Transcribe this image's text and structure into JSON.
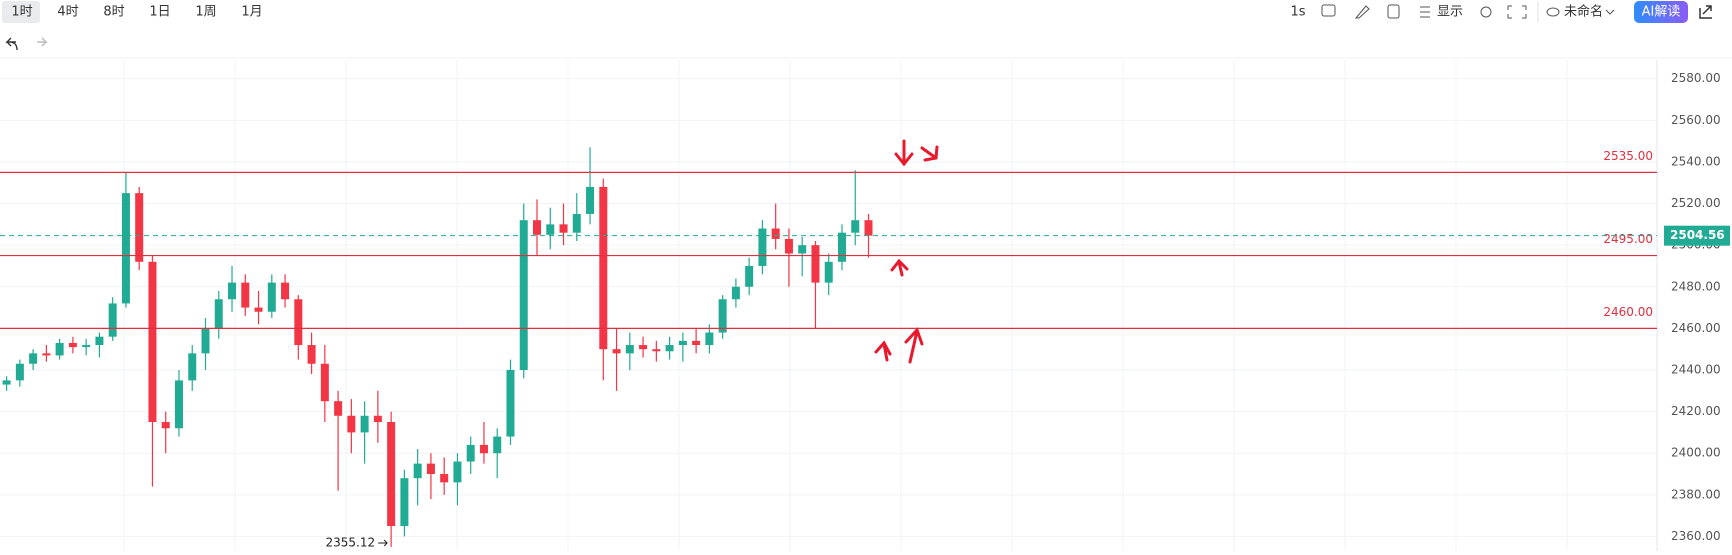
{
  "toolbar": {
    "intervals": [
      "1时",
      "4时",
      "8时",
      "1日",
      "1周",
      "1月"
    ],
    "refresh": "1s",
    "display": "显示",
    "layout_name": "未命名",
    "ai_button": "AI解读"
  },
  "chart_data": {
    "type": "candlestick",
    "up_color": "#22ab94",
    "down_color": "#f23645",
    "level_color": "#e03040",
    "grid": true,
    "ylim": [
      2353,
      2589
    ],
    "yticks": [
      {
        "value": 2360,
        "label": "2360.00"
      },
      {
        "value": 2380,
        "label": "2380.00"
      },
      {
        "value": 2400,
        "label": "2400.00"
      },
      {
        "value": 2420,
        "label": "2420.00"
      },
      {
        "value": 2440,
        "label": "2440.00"
      },
      {
        "value": 2460,
        "label": "2460.00"
      },
      {
        "value": 2480,
        "label": "2480.00"
      },
      {
        "value": 2500,
        "label": "2500.00"
      },
      {
        "value": 2520,
        "label": "2520.00"
      },
      {
        "value": 2540,
        "label": "2540.00"
      },
      {
        "value": 2560,
        "label": "2560.00"
      },
      {
        "value": 2580,
        "label": "2580.00"
      }
    ],
    "levels": [
      {
        "value": 2535,
        "label": "2535.00"
      },
      {
        "value": 2495,
        "label": "2495.00"
      },
      {
        "value": 2460,
        "label": "2460.00"
      }
    ],
    "last_price": {
      "value": 2504.56,
      "label": "2504.56"
    },
    "low_marker": {
      "value": 2355.12,
      "label": "2355.12"
    },
    "ohlc": [
      [
        2433,
        2437,
        2430,
        2435
      ],
      [
        2435,
        2445,
        2432,
        2443
      ],
      [
        2443,
        2450,
        2440,
        2448
      ],
      [
        2448,
        2452,
        2444,
        2447
      ],
      [
        2447,
        2455,
        2445,
        2453
      ],
      [
        2453,
        2456,
        2448,
        2451
      ],
      [
        2451,
        2455,
        2447,
        2452
      ],
      [
        2452,
        2458,
        2446,
        2456
      ],
      [
        2456,
        2475,
        2454,
        2472
      ],
      [
        2472,
        2535,
        2470,
        2525
      ],
      [
        2525,
        2528,
        2488,
        2492
      ],
      [
        2492,
        2495,
        2384,
        2415
      ],
      [
        2415,
        2420,
        2400,
        2412
      ],
      [
        2412,
        2440,
        2408,
        2435
      ],
      [
        2435,
        2452,
        2430,
        2448
      ],
      [
        2448,
        2465,
        2440,
        2460
      ],
      [
        2460,
        2478,
        2455,
        2474
      ],
      [
        2474,
        2490,
        2468,
        2482
      ],
      [
        2482,
        2486,
        2466,
        2470
      ],
      [
        2470,
        2478,
        2462,
        2468
      ],
      [
        2468,
        2486,
        2465,
        2482
      ],
      [
        2482,
        2486,
        2470,
        2474
      ],
      [
        2474,
        2476,
        2445,
        2452
      ],
      [
        2452,
        2458,
        2438,
        2443
      ],
      [
        2443,
        2452,
        2415,
        2425
      ],
      [
        2425,
        2430,
        2382,
        2418
      ],
      [
        2418,
        2426,
        2400,
        2410
      ],
      [
        2410,
        2425,
        2395,
        2418
      ],
      [
        2418,
        2430,
        2405,
        2415
      ],
      [
        2415,
        2420,
        2355,
        2365
      ],
      [
        2365,
        2392,
        2360,
        2388
      ],
      [
        2388,
        2402,
        2375,
        2395
      ],
      [
        2395,
        2400,
        2378,
        2390
      ],
      [
        2390,
        2398,
        2380,
        2386
      ],
      [
        2386,
        2400,
        2375,
        2396
      ],
      [
        2396,
        2408,
        2390,
        2404
      ],
      [
        2404,
        2415,
        2395,
        2400
      ],
      [
        2400,
        2412,
        2388,
        2408
      ],
      [
        2408,
        2445,
        2404,
        2440
      ],
      [
        2440,
        2520,
        2436,
        2512
      ],
      [
        2512,
        2522,
        2495,
        2505
      ],
      [
        2505,
        2518,
        2498,
        2510
      ],
      [
        2510,
        2520,
        2500,
        2506
      ],
      [
        2506,
        2525,
        2502,
        2515
      ],
      [
        2515,
        2547,
        2510,
        2528
      ],
      [
        2528,
        2532,
        2435,
        2450
      ],
      [
        2450,
        2460,
        2430,
        2448
      ],
      [
        2448,
        2458,
        2440,
        2452
      ],
      [
        2452,
        2456,
        2446,
        2450
      ],
      [
        2450,
        2454,
        2444,
        2449
      ],
      [
        2449,
        2456,
        2445,
        2452
      ],
      [
        2452,
        2458,
        2444,
        2454
      ],
      [
        2454,
        2460,
        2448,
        2452
      ],
      [
        2452,
        2462,
        2448,
        2458
      ],
      [
        2458,
        2476,
        2455,
        2474
      ],
      [
        2474,
        2484,
        2470,
        2480
      ],
      [
        2480,
        2494,
        2476,
        2490
      ],
      [
        2490,
        2512,
        2486,
        2508
      ],
      [
        2508,
        2520,
        2498,
        2503
      ],
      [
        2503,
        2508,
        2480,
        2496
      ],
      [
        2496,
        2504,
        2485,
        2500
      ],
      [
        2500,
        2502,
        2460,
        2482
      ],
      [
        2482,
        2496,
        2476,
        2492
      ],
      [
        2492,
        2510,
        2488,
        2506
      ],
      [
        2506,
        2536,
        2500,
        2512
      ],
      [
        2512,
        2515,
        2494,
        2504.56
      ]
    ]
  }
}
